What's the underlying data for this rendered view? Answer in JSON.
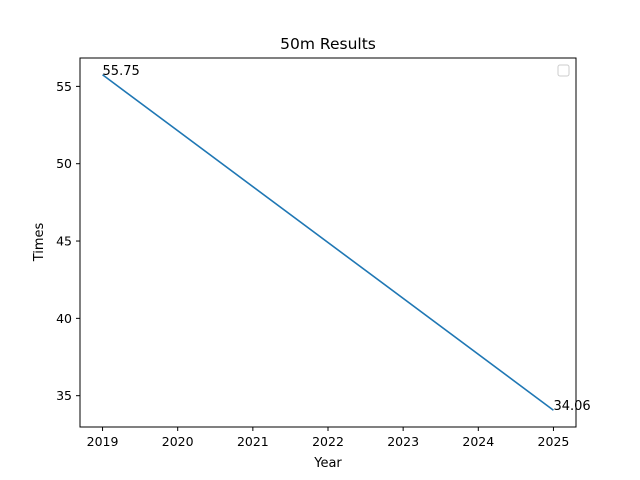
{
  "chart_data": {
    "type": "line",
    "title": "50m Results",
    "xlabel": "Year",
    "ylabel": "Times",
    "x": [
      2019,
      2025
    ],
    "series": [
      {
        "values": [
          55.75,
          34.06
        ],
        "color": "#1f77b4"
      }
    ],
    "data_labels": [
      "55.75",
      "34.06"
    ],
    "xticks": [
      2019,
      2020,
      2021,
      2022,
      2023,
      2024,
      2025
    ],
    "yticks": [
      35,
      40,
      45,
      50,
      55
    ],
    "xlim": [
      2018.7,
      2025.3
    ],
    "ylim": [
      32.975,
      56.835
    ],
    "grid": false,
    "legend": {
      "placement": "top-right",
      "entries": []
    }
  }
}
